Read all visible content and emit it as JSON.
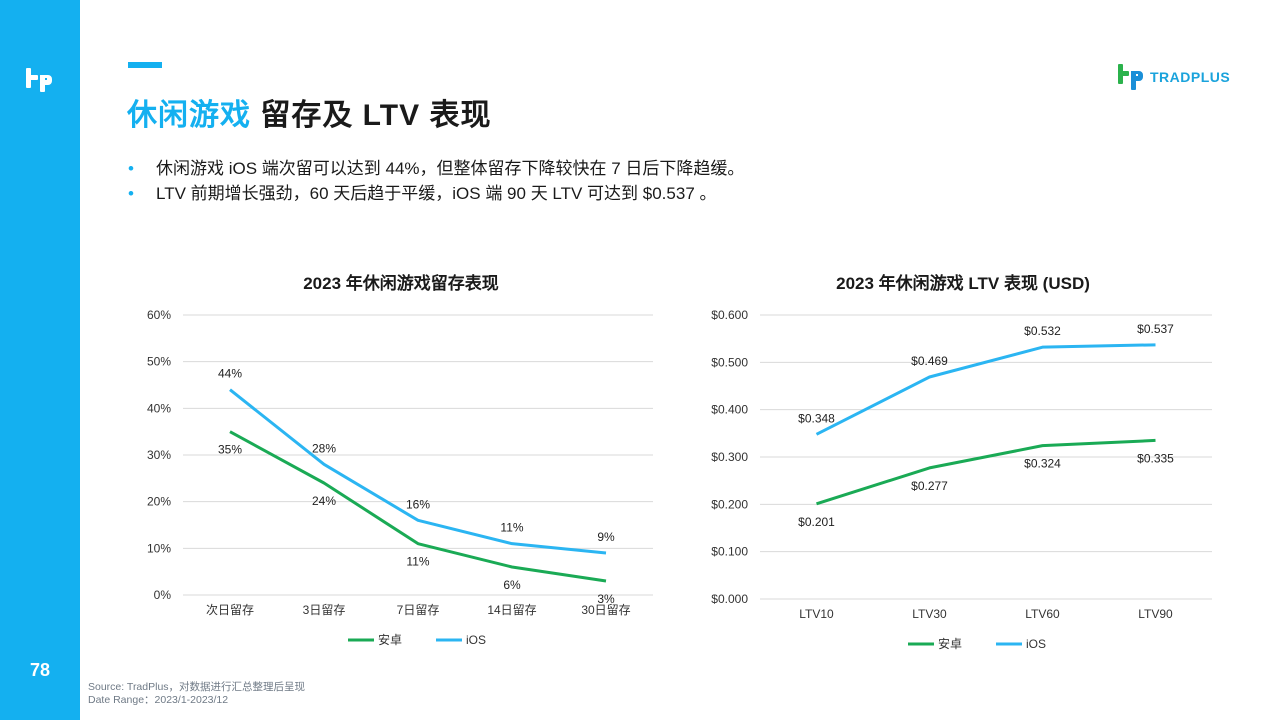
{
  "page": {
    "number": "78",
    "title_highlight": "休闲游戏",
    "title_rest": "留存及 LTV 表现",
    "brand": "TRADPLUS"
  },
  "bullets": [
    "休闲游戏 iOS 端次留可以达到 44%，但整体留存下降较快在 7 日后下降趋缓。",
    "LTV 前期增长强劲，60 天后趋于平缓，iOS 端 90 天 LTV 可达到 $0.537 。"
  ],
  "source": {
    "line1": "Source: TradPlus，对数据进行汇总整理后呈现",
    "line2": "Date Range：2023/1-2023/12"
  },
  "colors": {
    "accent": "#14b0f0",
    "android": "#1aaa55",
    "ios": "#2bb5f2",
    "grid": "#d9d9d9"
  },
  "chart_data": [
    {
      "type": "line",
      "title": "2023 年休闲游戏留存表现",
      "categories": [
        "次日留存",
        "3日留存",
        "7日留存",
        "14日留存",
        "30日留存"
      ],
      "ylim": [
        0,
        60
      ],
      "yticks": [
        "0%",
        "10%",
        "20%",
        "30%",
        "40%",
        "50%",
        "60%"
      ],
      "series": [
        {
          "name": "安卓",
          "color": "#1aaa55",
          "values": [
            35,
            24,
            11,
            6,
            3
          ],
          "labels": [
            "35%",
            "24%",
            "11%",
            "6%",
            "3%"
          ]
        },
        {
          "name": "iOS",
          "color": "#2bb5f2",
          "values": [
            44,
            28,
            16,
            11,
            9
          ],
          "labels": [
            "44%",
            "28%",
            "16%",
            "11%",
            "9%"
          ]
        }
      ]
    },
    {
      "type": "line",
      "title": "2023 年休闲游戏 LTV 表现 (USD)",
      "categories": [
        "LTV10",
        "LTV30",
        "LTV60",
        "LTV90"
      ],
      "ylim": [
        0,
        0.6
      ],
      "yticks": [
        "$0.000",
        "$0.100",
        "$0.200",
        "$0.300",
        "$0.400",
        "$0.500",
        "$0.600"
      ],
      "series": [
        {
          "name": "安卓",
          "color": "#1aaa55",
          "values": [
            0.201,
            0.277,
            0.324,
            0.335
          ],
          "labels": [
            "$0.201",
            "$0.277",
            "$0.324",
            "$0.335"
          ]
        },
        {
          "name": "iOS",
          "color": "#2bb5f2",
          "values": [
            0.348,
            0.469,
            0.532,
            0.537
          ],
          "labels": [
            "$0.348",
            "$0.469",
            "$0.532",
            "$0.537"
          ]
        }
      ]
    }
  ]
}
